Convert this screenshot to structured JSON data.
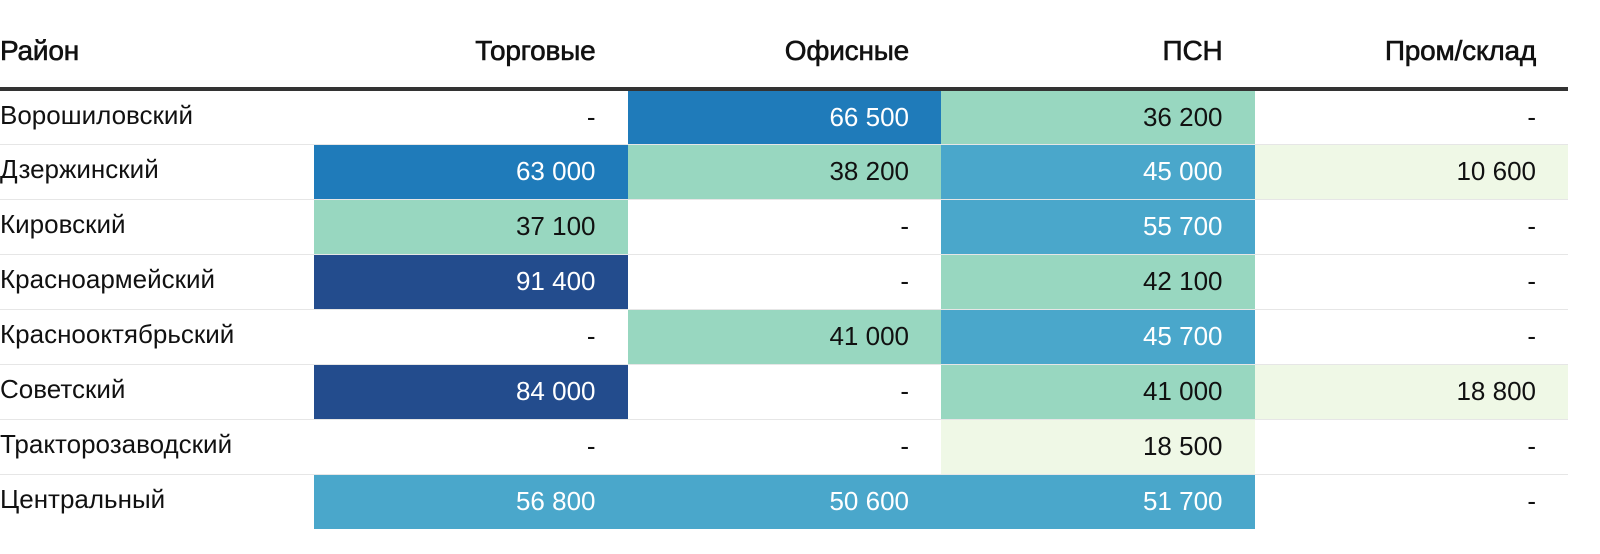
{
  "chart_data": {
    "type": "table",
    "columns": [
      "Район",
      "Торговые",
      "Офисные",
      "ПСН",
      "Пром/склад"
    ],
    "rows": [
      {
        "district": "Ворошиловский",
        "cells": [
          "-",
          "66 500",
          "36 200",
          "-"
        ],
        "values": [
          null,
          66500,
          36200,
          null
        ]
      },
      {
        "district": "Дзержинский",
        "cells": [
          "63 000",
          "38 200",
          "45 000",
          "10 600"
        ],
        "values": [
          63000,
          38200,
          45000,
          10600
        ]
      },
      {
        "district": "Кировский",
        "cells": [
          "37 100",
          "-",
          "55 700",
          "-"
        ],
        "values": [
          37100,
          null,
          55700,
          null
        ]
      },
      {
        "district": "Красноармейский",
        "cells": [
          "91 400",
          "-",
          "42 100",
          "-"
        ],
        "values": [
          91400,
          null,
          42100,
          null
        ]
      },
      {
        "district": "Краснооктябрьский",
        "cells": [
          "-",
          "41 000",
          "45 700",
          "-"
        ],
        "values": [
          null,
          41000,
          45700,
          null
        ]
      },
      {
        "district": "Советский",
        "cells": [
          "84 000",
          "-",
          "41 000",
          "18 800"
        ],
        "values": [
          84000,
          null,
          41000,
          18800
        ]
      },
      {
        "district": "Тракторозаводский",
        "cells": [
          "-",
          "-",
          "18 500",
          "-"
        ],
        "values": [
          null,
          null,
          18500,
          null
        ]
      },
      {
        "district": "Центральный",
        "cells": [
          "56 800",
          "50 600",
          "51 700",
          "-"
        ],
        "values": [
          56800,
          50600,
          51700,
          null
        ]
      }
    ],
    "color_scale": [
      {
        "min": 0,
        "max": 20000,
        "color": "#eff8e6"
      },
      {
        "min": 20000,
        "max": 45000,
        "color": "#98d7c0"
      },
      {
        "min": 45000,
        "max": 60000,
        "color": "#4aa7cb"
      },
      {
        "min": 60000,
        "max": 80000,
        "color": "#1f7bba"
      },
      {
        "min": 80000,
        "max": 100000,
        "color": "#234c8d"
      }
    ],
    "light_text_threshold": 45000
  }
}
